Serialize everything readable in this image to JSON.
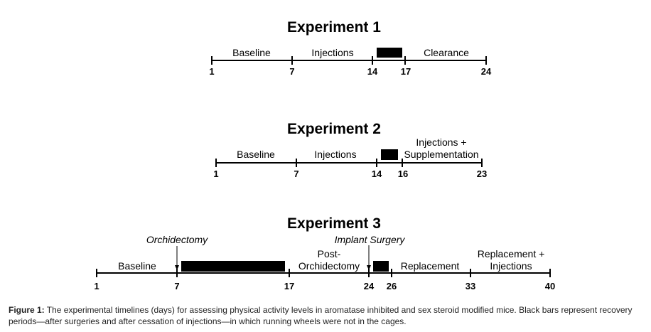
{
  "experiments": [
    {
      "title": "Experiment 1",
      "days": [
        "1",
        "7",
        "14",
        "17",
        "24"
      ],
      "phases": [
        "Baseline",
        "Injections",
        "Clearance"
      ]
    },
    {
      "title": "Experiment 2",
      "days": [
        "1",
        "7",
        "14",
        "16",
        "23"
      ],
      "phases": [
        "Baseline",
        "Injections",
        "Injections +",
        "Supplementation"
      ]
    },
    {
      "title": "Experiment 3",
      "days": [
        "1",
        "7",
        "17",
        "24",
        "26",
        "33",
        "40"
      ],
      "phases": [
        "Baseline",
        "Post-",
        "Orchidectomy",
        "Replacement",
        "Replacement +",
        "Injections"
      ],
      "events": [
        "Orchidectomy",
        "Implant Surgery"
      ]
    }
  ],
  "caption": {
    "label": "Figure 1:",
    "text": "The experimental timelines (days) for assessing physical activity levels in aromatase inhibited and sex steroid modified mice. Black bars represent recovery periods—after surgeries and after cessation of injections—in which running wheels were not in the cages."
  }
}
